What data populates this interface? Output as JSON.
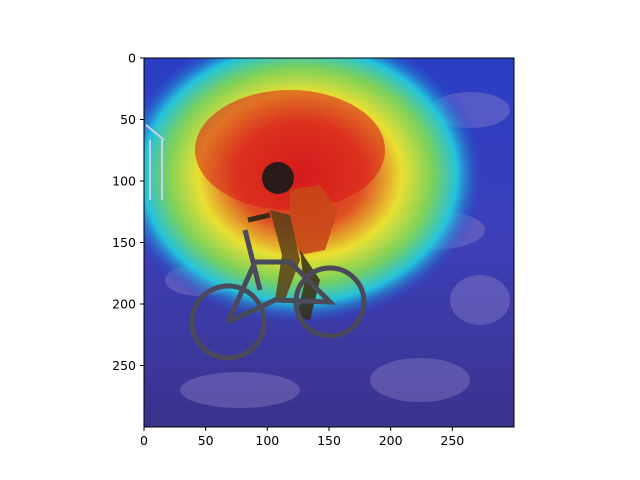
{
  "figure": {
    "axes": {
      "x_ticks": [
        "0",
        "50",
        "100",
        "150",
        "200",
        "250"
      ],
      "y_ticks": [
        "0",
        "50",
        "100",
        "150",
        "200",
        "250"
      ],
      "x_range": [
        0,
        300
      ],
      "y_range": [
        0,
        300
      ],
      "y_inverted": true
    },
    "image": {
      "content": "heatmap overlay (jet colormap) on photo of mountain biker on rocky hillside",
      "colors": {
        "hot": "#d91a1a",
        "warm": "#f2e82a",
        "mid": "#22c8e0",
        "cool": "#2438c8",
        "deep": "#1a1c8c"
      }
    }
  }
}
